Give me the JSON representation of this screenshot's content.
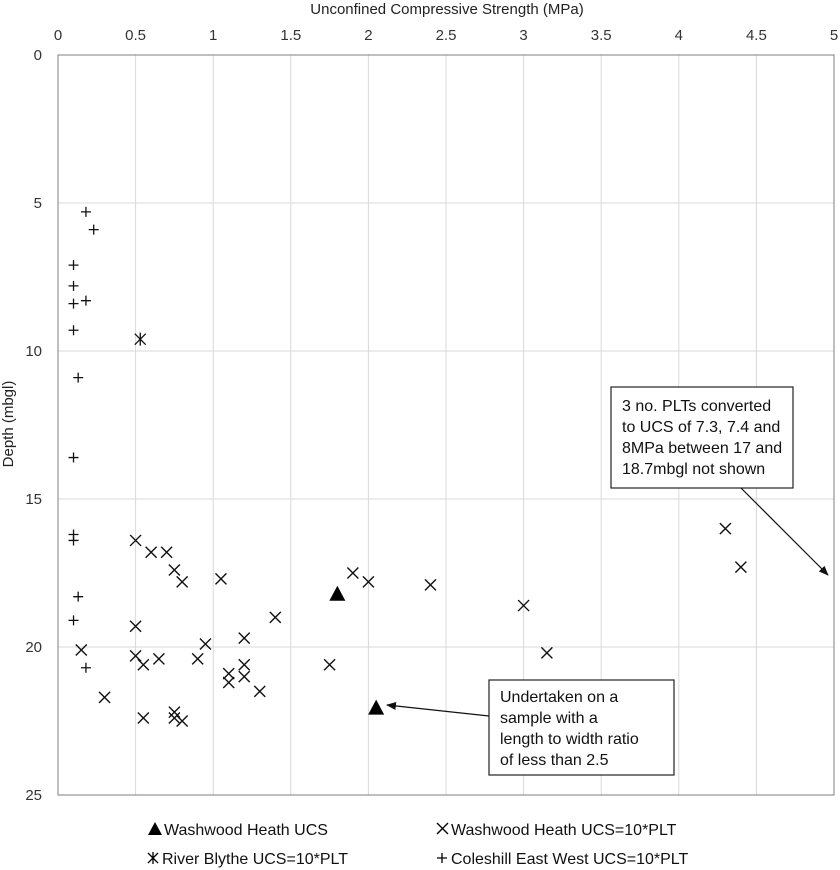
{
  "chart_data": {
    "type": "scatter",
    "title": "",
    "xlabel": "Unconfined Compressive Strength (MPa)",
    "ylabel": "Depth (mbgl)",
    "xlim": [
      0,
      5
    ],
    "ylim": [
      0,
      25
    ],
    "x_ticks": [
      "0",
      "0.5",
      "1",
      "1.5",
      "2",
      "2.5",
      "3",
      "3.5",
      "4",
      "4.5",
      "5"
    ],
    "y_ticks": [
      "0",
      "5",
      "10",
      "15",
      "20",
      "25"
    ],
    "x_axis_position": "top",
    "y_inverted": true,
    "grid": true,
    "legend_position": "bottom",
    "series": [
      {
        "name": "Washwood Heath UCS",
        "marker": "triangle",
        "points": [
          [
            1.8,
            18.2
          ],
          [
            2.05,
            22.05
          ]
        ]
      },
      {
        "name": "Washwood Heath UCS=10*PLT",
        "marker": "x",
        "points": [
          [
            0.5,
            16.4
          ],
          [
            0.6,
            16.8
          ],
          [
            0.7,
            16.8
          ],
          [
            0.75,
            17.4
          ],
          [
            0.8,
            17.8
          ],
          [
            1.05,
            17.7
          ],
          [
            1.9,
            17.5
          ],
          [
            2.0,
            17.8
          ],
          [
            2.4,
            17.9
          ],
          [
            3.0,
            18.6
          ],
          [
            4.3,
            16.0
          ],
          [
            4.4,
            17.3
          ],
          [
            1.4,
            19.0
          ],
          [
            0.5,
            19.3
          ],
          [
            1.2,
            19.7
          ],
          [
            0.95,
            19.9
          ],
          [
            0.15,
            20.1
          ],
          [
            3.15,
            20.2
          ],
          [
            0.5,
            20.3
          ],
          [
            0.9,
            20.4
          ],
          [
            0.65,
            20.4
          ],
          [
            0.55,
            20.6
          ],
          [
            1.2,
            20.6
          ],
          [
            1.75,
            20.6
          ],
          [
            1.1,
            20.9
          ],
          [
            1.2,
            21.0
          ],
          [
            1.1,
            21.2
          ],
          [
            1.3,
            21.5
          ],
          [
            0.3,
            21.7
          ],
          [
            0.75,
            22.2
          ],
          [
            0.55,
            22.4
          ],
          [
            0.75,
            22.4
          ],
          [
            0.8,
            22.5
          ]
        ]
      },
      {
        "name": "River Blythe UCS=10*PLT",
        "marker": "asterisk",
        "points": [
          [
            0.53,
            9.6
          ]
        ]
      },
      {
        "name": "Coleshill East West UCS=10*PLT",
        "marker": "plus",
        "points": [
          [
            0.18,
            5.3
          ],
          [
            0.23,
            5.9
          ],
          [
            0.1,
            7.1
          ],
          [
            0.1,
            7.8
          ],
          [
            0.18,
            8.3
          ],
          [
            0.1,
            8.4
          ],
          [
            0.1,
            9.3
          ],
          [
            0.13,
            10.9
          ],
          [
            0.1,
            13.6
          ],
          [
            0.1,
            16.2
          ],
          [
            0.1,
            16.4
          ],
          [
            0.13,
            18.3
          ],
          [
            0.1,
            19.1
          ],
          [
            0.18,
            20.7
          ]
        ]
      }
    ],
    "annotations": [
      {
        "name": "plt-not-shown-note",
        "lines": [
          "3 no. PLTs converted",
          "to UCS of 7.3, 7.4 and",
          "8MPa between 17 and",
          "18.7mbgl not shown"
        ],
        "arrow_to": [
          5.0,
          17.8
        ]
      },
      {
        "name": "sample-ratio-note",
        "lines": [
          "Undertaken on a",
          "sample with a",
          "length to width ratio",
          "of less than 2.5"
        ],
        "arrow_to": [
          2.1,
          22.05
        ]
      }
    ]
  }
}
